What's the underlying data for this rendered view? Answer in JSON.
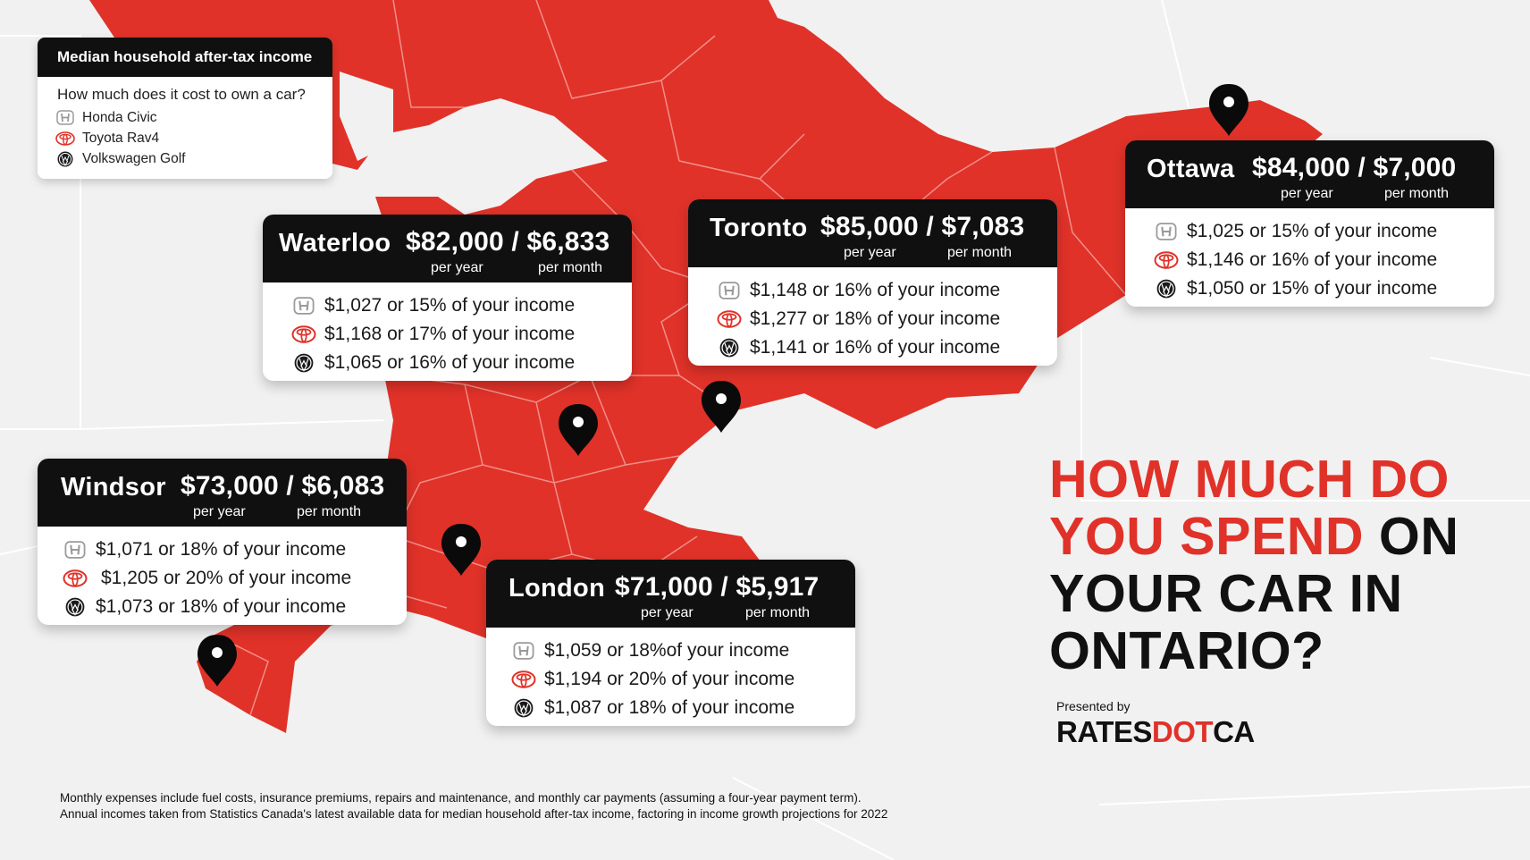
{
  "legend": {
    "title": "Median household after-tax income",
    "question": "How much does it cost to own a car?",
    "items": [
      {
        "icon": "honda-logo-icon",
        "label": "Honda Civic"
      },
      {
        "icon": "toyota-logo-icon",
        "label": "Toyota Rav4"
      },
      {
        "icon": "volkswagen-logo-icon",
        "label": "Volkswagen Golf"
      }
    ]
  },
  "cities": [
    {
      "id": "waterloo",
      "name": "Waterloo",
      "amounts": "$82,000 / $6,833",
      "per_year": "per year",
      "per_month": "per month",
      "rows": [
        "$1,027 or 15% of your income",
        "$1,168 or 17% of your income",
        "$1,065 or 16% of your income"
      ]
    },
    {
      "id": "toronto",
      "name": "Toronto",
      "amounts": "$85,000 / $7,083",
      "per_year": "per year",
      "per_month": "per month",
      "rows": [
        "$1,148 or 16% of your income",
        "$1,277 or 18% of your income",
        "$1,141 or 16% of your income"
      ]
    },
    {
      "id": "ottawa",
      "name": "Ottawa",
      "amounts": "$84,000 / $7,000",
      "per_year": "per year",
      "per_month": "per month",
      "rows": [
        "$1,025 or 15% of your income",
        "$1,146 or 16% of your income",
        "$1,050 or 15% of your income"
      ]
    },
    {
      "id": "windsor",
      "name": "Windsor",
      "amounts": "$73,000 / $6,083",
      "per_year": "per year",
      "per_month": "per month",
      "rows": [
        "$1,071 or 18% of your income",
        "$1,205 or 20% of your income",
        "$1,073 or 18% of your income"
      ]
    },
    {
      "id": "london",
      "name": "London",
      "amounts": "$71,000 / $5,917",
      "per_year": "per year",
      "per_month": "per month",
      "rows": [
        "$1,059 or 18%of your income",
        "$1,194 or 20% of your income",
        "$1,087 or 18% of your income"
      ]
    }
  ],
  "headline": {
    "red_part": "HOW MUCH DO YOU SPEND",
    "black_part": " ON YOUR CAR IN ONTARIO?"
  },
  "presented_by": "Presented by",
  "brand": {
    "part1": "RATES",
    "part2": "DOT",
    "part3": "CA"
  },
  "footnote": [
    "Monthly expenses include fuel costs, insurance premiums, repairs and maintenance, and monthly car payments (assuming a four-year payment term).",
    "Annual incomes taken from Statistics Canada's latest available data for median household after-tax income, factoring in income growth projections for 2022"
  ],
  "colors": {
    "map_red": "#e03229",
    "background": "#f1f1f1",
    "header_black": "#101010"
  }
}
